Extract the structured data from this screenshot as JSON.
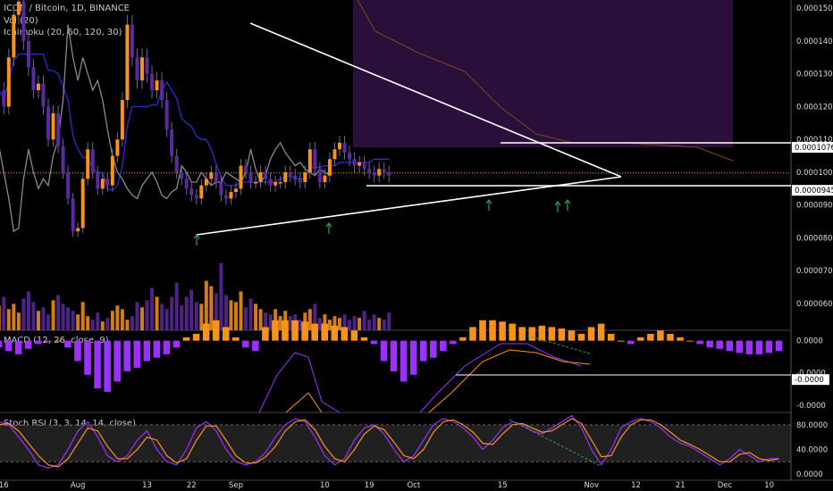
{
  "header": {
    "symbol_line": "ICON / Bitcoin, 1D, BINANCE",
    "vol_line": "Vol (20)",
    "ichimoku_line": "Ichimoku (20, 60, 120, 30)",
    "macd_line": "MACD (12, 26, close, 9)",
    "stoch_line": "Stoch RSI (3, 3, 14, 14, close)"
  },
  "colors": {
    "background": "#000000",
    "up": "#f7931a",
    "down": "#5b2a9e",
    "wick": "#6a6a9a",
    "kijun": "#2c2fc7",
    "chikou": "#8a8a8a",
    "cloud": "#2a0f3a",
    "span_line": "#7a4a1a",
    "trendline": "#ffffff",
    "arrow": "#2e9e4e",
    "macd_pos": "#f7931a",
    "macd_neg": "#9b30ff",
    "stoch_k": "#9b30ff",
    "stoch_d": "#f7931a",
    "axis_text": "#dcdcdc"
  },
  "chart_data": {
    "type": "candlestick",
    "price_scale": {
      "ylim": [
        7.36e-05,
        0.0001525
      ],
      "ticks": [
        "0.0001500",
        "0.0001400",
        "0.0001300",
        "0.0001200",
        "0.0001100",
        "0.0001000",
        "0.0000900",
        "0.0000800",
        "0.0000700",
        "0.0000600"
      ],
      "tick_values": [
        0.00015,
        0.00014,
        0.00013,
        0.00012,
        0.00011,
        0.0001,
        9e-05,
        8e-05,
        7e-05,
        6e-05
      ],
      "marker_labels": [
        {
          "label": "0.0001076",
          "value": 0.0001076
        },
        {
          "label": "0.0000945",
          "value": 9.45e-05
        }
      ],
      "current_price": 9.98e-05
    },
    "x_labels": [
      "16",
      "Aug",
      "13",
      "22",
      "Sep",
      "10",
      "19",
      "Oct",
      "15",
      "Nov",
      "12",
      "21",
      "Dec",
      "10"
    ],
    "x_label_index": [
      1,
      16,
      30,
      39,
      48,
      66,
      75,
      84,
      102,
      120,
      129,
      138,
      147,
      156
    ],
    "closes": [
      0.000125,
      0.00012,
      0.000135,
      0.000148,
      0.000152,
      0.00014,
      0.000132,
      0.000125,
      0.000127,
      0.00012,
      0.00011,
      0.000118,
      0.000108,
      0.0001,
      9.2e-05,
      8.2e-05,
      8.3e-05,
      9.8e-05,
      0.000107,
      0.0001,
      9.5e-05,
      9.8e-05,
      9.6e-05,
      0.000105,
      0.00011,
      0.000122,
      0.000145,
      0.000135,
      0.000128,
      0.000135,
      0.00013,
      0.000125,
      0.000128,
      0.000122,
      0.000113,
      0.000105,
      0.0001,
      9.8e-05,
      9.5e-05,
      9.3e-05,
      9.2e-05,
      9.6e-05,
      9.8e-05,
      0.0001,
      9.7e-05,
      9.3e-05,
      9.2e-05,
      9.4e-05,
      9.5e-05,
      0.000102,
      0.0001,
      9.7e-05,
      9.7e-05,
      0.0001,
      9.8e-05,
      9.6e-05,
      9.7e-05,
      9.7e-05,
      0.0001,
      9.9e-05,
      9.8e-05,
      9.7e-05,
      0.0001,
      0.000107,
      0.000101,
      9.7e-05,
      9.9e-05,
      0.000104,
      0.000107,
      0.000109,
      0.000106,
      0.000104,
      0.000102,
      0.000103,
      0.000101,
      0.0001,
      9.9e-05,
      0.000101,
      0.0001,
      9.9e-05
    ],
    "volume": {
      "ylim": [
        0,
        4.8
      ],
      "values": [
        1.4,
        1.9,
        1.2,
        1.5,
        1.0,
        1.8,
        2.2,
        1.6,
        1.1,
        1.3,
        0.9,
        1.7,
        2.0,
        1.5,
        1.3,
        1.1,
        0.9,
        1.6,
        0.8,
        0.6,
        1.0,
        0.5,
        0.7,
        1.1,
        1.4,
        1.2,
        0.6,
        0.8,
        1.6,
        1.3,
        1.7,
        2.4,
        1.9,
        1.5,
        1.2,
        1.9,
        2.7,
        1.4,
        1.9,
        2.3,
        1.6,
        1.5,
        2.8,
        2.5,
        2.1,
        3.8,
        2.0,
        1.7,
        1.6,
        2.2,
        1.3,
        1.8,
        1.5,
        1.2,
        1.0,
        0.9,
        1.2,
        0.8,
        1.1,
        0.8,
        0.9,
        0.6,
        1.0,
        1.2,
        1.5,
        0.7,
        0.9,
        0.6,
        0.8,
        0.7,
        0.9,
        0.6,
        0.8,
        0.7,
        1.1,
        0.6,
        0.9,
        0.7,
        0.6,
        1.0
      ]
    },
    "macd": {
      "ylim": [
        -1.0,
        0.1
      ],
      "ticks": [
        "0.0000",
        "-0.0000",
        "-0.0000"
      ],
      "tick_values": [
        0.0,
        -0.47,
        -0.95
      ],
      "marker_label": "-0.0000",
      "marker_value": -0.57,
      "histogram": [
        -0.1,
        -0.15,
        -0.2,
        -0.12,
        -0.05,
        -0.02,
        0.0,
        -0.1,
        -0.3,
        -0.5,
        -0.7,
        -0.75,
        -0.6,
        -0.45,
        -0.4,
        -0.3,
        -0.25,
        -0.2,
        -0.1,
        0.05,
        0.1,
        0.25,
        0.3,
        0.2,
        0.05,
        -0.1,
        -0.15,
        0.2,
        0.3,
        0.3,
        0.3,
        0.28,
        0.25,
        0.25,
        0.22,
        0.2,
        0.15,
        0.05,
        -0.05,
        -0.3,
        -0.45,
        -0.6,
        -0.5,
        -0.3,
        -0.25,
        -0.15,
        -0.05,
        0.05,
        0.2,
        0.3,
        0.3,
        0.28,
        0.25,
        0.2,
        0.2,
        0.22,
        0.2,
        0.18,
        0.15,
        0.1,
        0.2,
        0.25,
        0.1,
        0.0,
        -0.05,
        0.05,
        0.1,
        0.15,
        0.1,
        0.05,
        0.0,
        -0.05,
        -0.1,
        -0.12,
        -0.15,
        -0.18,
        -0.2,
        -0.2,
        -0.18,
        -0.15
      ]
    },
    "stoch_rsi": {
      "ylim": [
        -10,
        100
      ],
      "ticks": [
        "80.0000",
        "40.0000",
        "0.0000"
      ],
      "tick_values": [
        80,
        40,
        0
      ],
      "band": [
        20,
        80
      ],
      "k": [
        85,
        80,
        60,
        40,
        15,
        10,
        15,
        40,
        70,
        85,
        60,
        30,
        20,
        30,
        55,
        70,
        40,
        20,
        15,
        40,
        75,
        85,
        70,
        40,
        20,
        15,
        20,
        35,
        60,
        80,
        90,
        85,
        60,
        30,
        15,
        25,
        55,
        75,
        80,
        65,
        40,
        20,
        30,
        55,
        80,
        90,
        85,
        75,
        60,
        40,
        55,
        75,
        85,
        80,
        70,
        65,
        75,
        85,
        95,
        75,
        40,
        15,
        40,
        75,
        85,
        90,
        85,
        75,
        60,
        50,
        45,
        35,
        25,
        15,
        25,
        40,
        30,
        20,
        25,
        25
      ],
      "d": [
        80,
        82,
        70,
        50,
        30,
        15,
        12,
        25,
        50,
        75,
        70,
        45,
        25,
        25,
        40,
        60,
        55,
        30,
        18,
        25,
        55,
        78,
        78,
        55,
        30,
        18,
        18,
        28,
        45,
        70,
        85,
        88,
        72,
        45,
        25,
        20,
        40,
        65,
        78,
        72,
        52,
        30,
        25,
        40,
        68,
        85,
        88,
        80,
        68,
        50,
        48,
        65,
        80,
        82,
        75,
        68,
        70,
        80,
        90,
        82,
        55,
        28,
        30,
        60,
        80,
        88,
        88,
        80,
        68,
        55,
        48,
        40,
        30,
        20,
        20,
        32,
        35,
        25,
        22,
        25
      ]
    }
  }
}
